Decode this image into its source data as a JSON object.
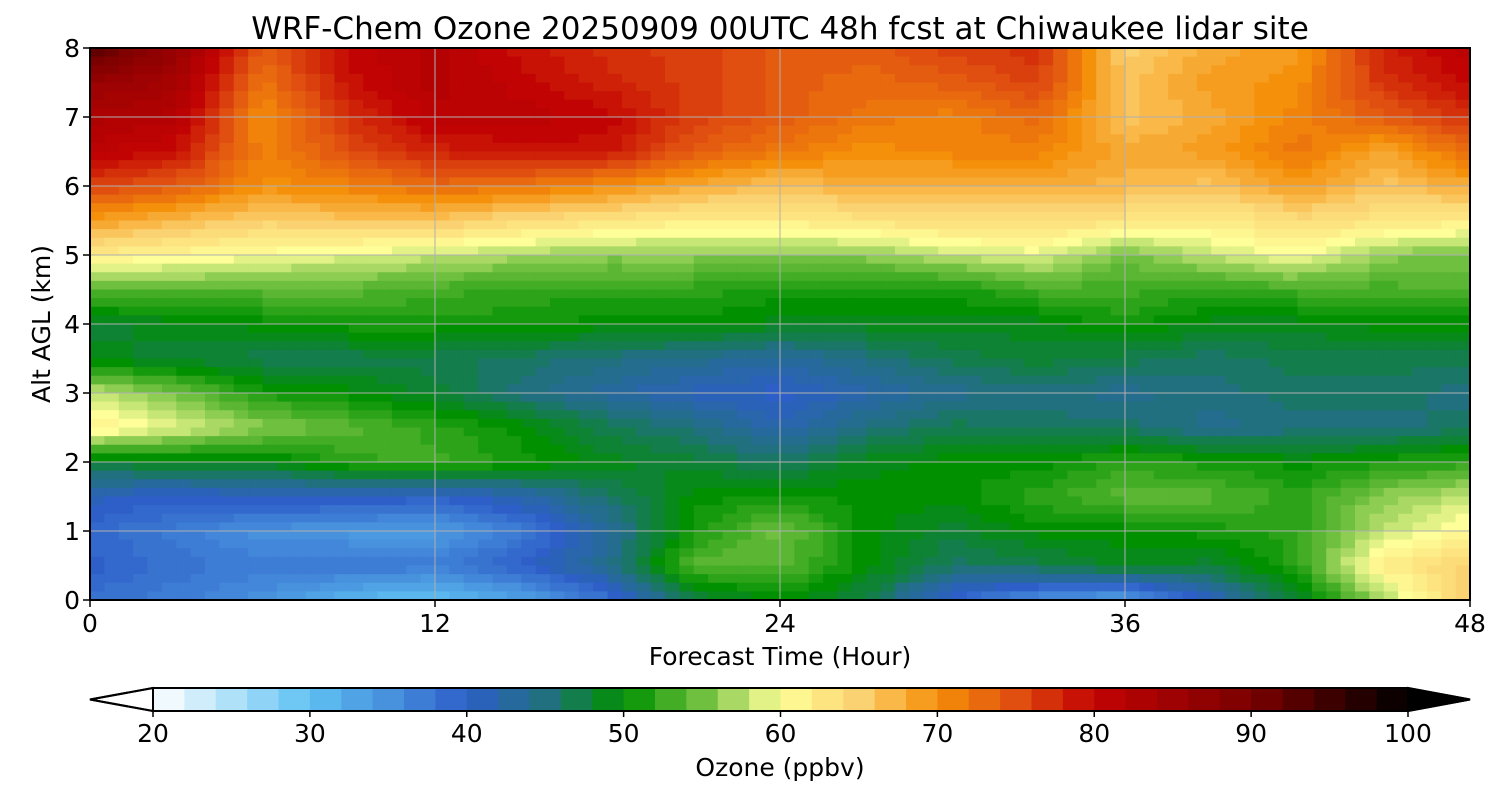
{
  "chart_data": {
    "type": "heatmap",
    "title": "WRF-Chem Ozone  20250909 00UTC 48h fcst at Chiwaukee lidar site",
    "xlabel": "Forecast Time (Hour)",
    "ylabel": "Alt AGL (km)",
    "xlim": [
      0,
      48
    ],
    "ylim": [
      0,
      8
    ],
    "x_ticks": [
      "0",
      "12",
      "24",
      "36",
      "48"
    ],
    "y_ticks": [
      "0",
      "1",
      "2",
      "3",
      "4",
      "5",
      "6",
      "7",
      "8"
    ],
    "grid": true,
    "x": [
      0,
      3,
      6,
      9,
      12,
      15,
      18,
      21,
      24,
      27,
      30,
      33,
      36,
      39,
      42,
      45,
      48
    ],
    "y": [
      0,
      0.5,
      1,
      1.5,
      2,
      2.5,
      3,
      3.5,
      4,
      4.5,
      5,
      5.5,
      6,
      6.5,
      7,
      7.5,
      8
    ],
    "z": [
      [
        38,
        37,
        35,
        31,
        30,
        33,
        38,
        47,
        50,
        47,
        39,
        35,
        33,
        41,
        48,
        57,
        66
      ],
      [
        40,
        38,
        37,
        38,
        37,
        40,
        44,
        54,
        54,
        50,
        46,
        47,
        49,
        48,
        52,
        62,
        65
      ],
      [
        39,
        37,
        35,
        34,
        34,
        37,
        43,
        51,
        55,
        50,
        48,
        50,
        50,
        51,
        52,
        58,
        61
      ],
      [
        41,
        40,
        41,
        41,
        40,
        42,
        46,
        50,
        51,
        50,
        50,
        52,
        54,
        54,
        52,
        56,
        58
      ],
      [
        48,
        49,
        49,
        52,
        53,
        51,
        49,
        48,
        46,
        49,
        50,
        50,
        52,
        51,
        50,
        51,
        52
      ],
      [
        62,
        59,
        56,
        54,
        52,
        50,
        47,
        45,
        42,
        45,
        47,
        46,
        46,
        44,
        45,
        45,
        46
      ],
      [
        58,
        55,
        51,
        50,
        48,
        45,
        43,
        41,
        40,
        42,
        44,
        45,
        44,
        45,
        46,
        46,
        45
      ],
      [
        49,
        48,
        47,
        47,
        47,
        46,
        45,
        44,
        43,
        45,
        47,
        48,
        47,
        46,
        47,
        47,
        47
      ],
      [
        48,
        49,
        50,
        51,
        51,
        51,
        50,
        50,
        49,
        49,
        49,
        49,
        51,
        49,
        49,
        50,
        50
      ],
      [
        54,
        54,
        54,
        54,
        53,
        52,
        52,
        52,
        51,
        51,
        51,
        53,
        53,
        52,
        53,
        53,
        54
      ],
      [
        62,
        61,
        60,
        59,
        58,
        57,
        56,
        56,
        56,
        56,
        58,
        59,
        55,
        58,
        60,
        56,
        55
      ],
      [
        69,
        67,
        65,
        66,
        66,
        64,
        63,
        62,
        62,
        63,
        64,
        64,
        63,
        62,
        64,
        63,
        62
      ],
      [
        76,
        74,
        70,
        71,
        73,
        72,
        70,
        68,
        66,
        68,
        67,
        68,
        67,
        66,
        69,
        66,
        68
      ],
      [
        81,
        79,
        71,
        75,
        78,
        79,
        79,
        74,
        72,
        70,
        71,
        71,
        68,
        69,
        72,
        68,
        73
      ],
      [
        83,
        82,
        70,
        77,
        81,
        81,
        80,
        76,
        74,
        72,
        71,
        73,
        66,
        68,
        71,
        74,
        77
      ],
      [
        86,
        84,
        72,
        79,
        82,
        80,
        78,
        76,
        74,
        73,
        74,
        76,
        66,
        69,
        70,
        77,
        80
      ],
      [
        93,
        86,
        74,
        80,
        82,
        79,
        77,
        76,
        74,
        74,
        76,
        77,
        65,
        68,
        69,
        78,
        81
      ]
    ],
    "colorbar": {
      "label": "Ozone  (ppbv)",
      "min": 20,
      "max": 100,
      "ticks": [
        "20",
        "30",
        "40",
        "50",
        "60",
        "70",
        "80",
        "90",
        "100"
      ],
      "extend": "both",
      "colors": [
        [
          20,
          "#ffffff"
        ],
        [
          30,
          "#5fc2f2"
        ],
        [
          40,
          "#2e5fc8"
        ],
        [
          45,
          "#21707f"
        ],
        [
          50,
          "#009000"
        ],
        [
          55,
          "#70c040"
        ],
        [
          60,
          "#ffff99"
        ],
        [
          65,
          "#fbd271"
        ],
        [
          70,
          "#f5900a"
        ],
        [
          75,
          "#e04f10"
        ],
        [
          80,
          "#c20303"
        ],
        [
          90,
          "#7a0000"
        ],
        [
          100,
          "#000000"
        ]
      ]
    }
  }
}
